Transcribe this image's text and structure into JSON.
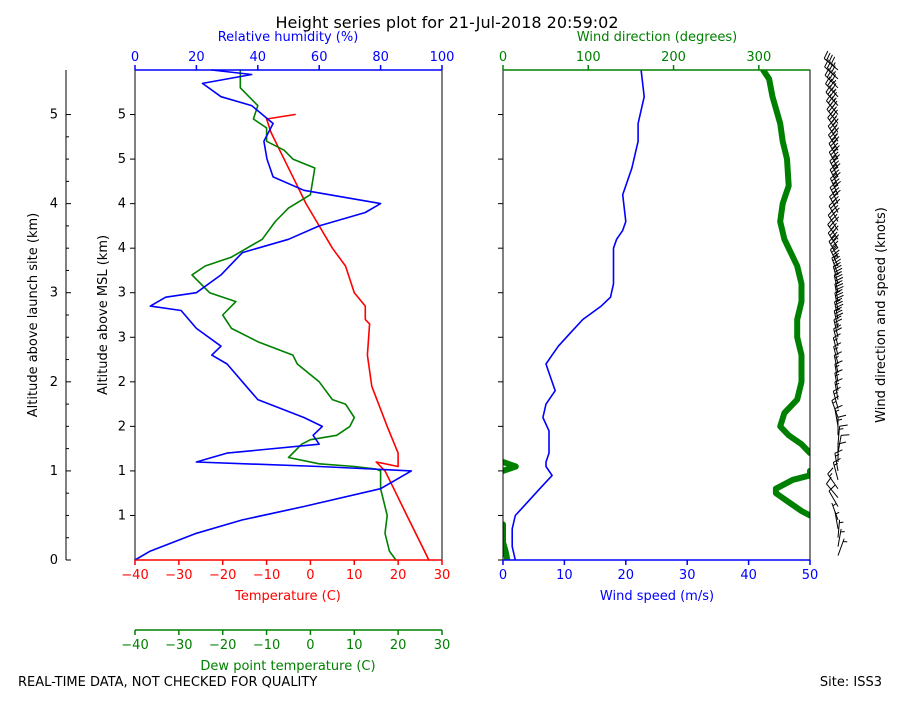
{
  "title": "Height series plot for 21-Jul-2018 20:59:02",
  "footer_left": "REAL-TIME DATA, NOT CHECKED FOR QUALITY",
  "footer_right": "Site: ISS3",
  "colors": {
    "temperature": "#ff0000",
    "dewpoint": "#008000",
    "humidity": "#0000ff",
    "wind_speed": "#0000ff",
    "wind_direction": "#008000",
    "barbs": "#000000"
  },
  "chart_data": [
    {
      "type": "line",
      "panel": "thermo",
      "outer_axis": {
        "label": "Altitude above launch site (km)",
        "ylim": [
          0,
          5
        ],
        "ticks": [
          0,
          1,
          2,
          3,
          4,
          5
        ]
      },
      "y_axis": {
        "label": "Altitude above MSL (km)",
        "ticks": [
          0.5,
          1,
          1.5,
          2,
          2.5,
          3,
          3.5,
          4,
          4.5,
          5
        ],
        "tick_labels": [
          "1",
          "1",
          "2",
          "2",
          "3",
          "3",
          "4",
          "4",
          "5",
          "5"
        ]
      },
      "x_bottom": {
        "label": "Temperature (C)",
        "xlim": [
          -40,
          30
        ],
        "ticks": [
          -40,
          -30,
          -20,
          -10,
          0,
          10,
          20,
          30
        ]
      },
      "x_bottom2": {
        "label": "Dew point temperature (C)",
        "xlim": [
          -40,
          30
        ],
        "ticks": [
          -40,
          -30,
          -20,
          -10,
          0,
          10,
          20,
          30
        ]
      },
      "x_top": {
        "label": "Relative humidity (%)",
        "xlim": [
          0,
          100
        ],
        "ticks": [
          0,
          20,
          40,
          60,
          80,
          100
        ]
      },
      "series": [
        {
          "key": "temperature",
          "axis": "bottom",
          "points": [
            [
              27,
              0
            ],
            [
              25.5,
              0.15
            ],
            [
              22,
              0.5
            ],
            [
              19,
              0.8
            ],
            [
              17,
              1.0
            ],
            [
              15,
              1.1
            ],
            [
              20,
              1.05
            ],
            [
              20,
              1.2
            ],
            [
              17.5,
              1.5
            ],
            [
              14,
              1.95
            ],
            [
              13,
              2.3
            ],
            [
              13.5,
              2.65
            ],
            [
              12.5,
              2.7
            ],
            [
              12.5,
              2.85
            ],
            [
              10,
              3.0
            ],
            [
              8,
              3.3
            ],
            [
              5,
              3.5
            ],
            [
              2,
              3.75
            ],
            [
              -1,
              4.0
            ],
            [
              -3,
              4.2
            ],
            [
              -7,
              4.6
            ],
            [
              -9,
              4.8
            ],
            [
              -10,
              4.95
            ],
            [
              -3.5,
              5.0
            ]
          ]
        },
        {
          "key": "dewpoint",
          "axis": "bottom2",
          "points": [
            [
              19.5,
              0
            ],
            [
              18,
              0.1
            ],
            [
              17,
              0.3
            ],
            [
              17.5,
              0.5
            ],
            [
              16.5,
              0.7
            ],
            [
              16,
              0.8
            ],
            [
              16,
              1.0
            ],
            [
              15,
              1.02
            ],
            [
              10,
              1.05
            ],
            [
              2,
              1.08
            ],
            [
              -5,
              1.15
            ],
            [
              -2,
              1.3
            ],
            [
              0,
              1.35
            ],
            [
              6,
              1.4
            ],
            [
              9,
              1.5
            ],
            [
              10,
              1.6
            ],
            [
              8,
              1.75
            ],
            [
              5,
              1.8
            ],
            [
              2,
              2.0
            ],
            [
              -3,
              2.2
            ],
            [
              -4,
              2.3
            ],
            [
              -12,
              2.45
            ],
            [
              -18,
              2.6
            ],
            [
              -20,
              2.75
            ],
            [
              -17,
              2.9
            ],
            [
              -23,
              3.0
            ],
            [
              -27,
              3.2
            ],
            [
              -24,
              3.3
            ],
            [
              -18,
              3.4
            ],
            [
              -11,
              3.6
            ],
            [
              -8,
              3.8
            ],
            [
              -5,
              3.95
            ],
            [
              0,
              4.1
            ],
            [
              1,
              4.4
            ],
            [
              -4,
              4.5
            ],
            [
              -6,
              4.6
            ],
            [
              -10,
              4.7
            ],
            [
              -10,
              4.85
            ],
            [
              -13,
              4.95
            ],
            [
              -12,
              5.1
            ],
            [
              -16,
              5.3
            ],
            [
              -16,
              5.5
            ]
          ]
        },
        {
          "key": "humidity",
          "axis": "top",
          "points": [
            [
              0,
              0
            ],
            [
              5,
              0.1
            ],
            [
              20,
              0.3
            ],
            [
              35,
              0.45
            ],
            [
              55,
              0.6
            ],
            [
              80,
              0.8
            ],
            [
              90,
              1.0
            ],
            [
              60,
              1.05
            ],
            [
              20,
              1.1
            ],
            [
              25,
              1.15
            ],
            [
              30,
              1.2
            ],
            [
              60,
              1.3
            ],
            [
              58,
              1.4
            ],
            [
              61,
              1.5
            ],
            [
              55,
              1.6
            ],
            [
              40,
              1.8
            ],
            [
              35,
              2.0
            ],
            [
              30,
              2.2
            ],
            [
              25,
              2.3
            ],
            [
              28,
              2.4
            ],
            [
              20,
              2.6
            ],
            [
              15,
              2.8
            ],
            [
              5,
              2.85
            ],
            [
              10,
              2.95
            ],
            [
              20,
              3.0
            ],
            [
              28,
              3.2
            ],
            [
              35,
              3.45
            ],
            [
              50,
              3.6
            ],
            [
              60,
              3.75
            ],
            [
              75,
              3.9
            ],
            [
              80,
              4.0
            ],
            [
              55,
              4.15
            ],
            [
              45,
              4.3
            ],
            [
              43,
              4.5
            ],
            [
              42,
              4.7
            ],
            [
              45,
              4.9
            ],
            [
              38,
              5.1
            ],
            [
              28,
              5.2
            ],
            [
              22,
              5.35
            ],
            [
              38,
              5.45
            ],
            [
              25,
              5.5
            ]
          ]
        }
      ]
    },
    {
      "type": "line",
      "panel": "wind",
      "x_bottom": {
        "label": "Wind speed (m/s)",
        "xlim": [
          0,
          50
        ],
        "ticks": [
          0,
          10,
          20,
          30,
          40,
          50
        ]
      },
      "x_top": {
        "label": "Wind direction (degrees)",
        "xlim": [
          0,
          360
        ],
        "ticks": [
          0,
          100,
          200,
          300
        ]
      },
      "y_ticks": [
        0,
        0.5,
        1,
        1.5,
        2,
        2.5,
        3,
        3.5,
        4,
        4.5,
        5
      ],
      "series": [
        {
          "key": "wind_speed",
          "axis": "bottom",
          "points": [
            [
              2,
              0
            ],
            [
              1.5,
              0.15
            ],
            [
              1.5,
              0.35
            ],
            [
              2,
              0.5
            ],
            [
              4,
              0.65
            ],
            [
              6,
              0.8
            ],
            [
              8,
              0.95
            ],
            [
              7,
              1.05
            ],
            [
              7,
              1.1
            ],
            [
              7.5,
              1.2
            ],
            [
              7.5,
              1.45
            ],
            [
              6.5,
              1.6
            ],
            [
              7,
              1.75
            ],
            [
              8.5,
              1.9
            ],
            [
              7.5,
              2.1
            ],
            [
              7,
              2.2
            ],
            [
              8,
              2.3
            ],
            [
              9,
              2.4
            ],
            [
              11,
              2.55
            ],
            [
              13,
              2.7
            ],
            [
              16,
              2.85
            ],
            [
              17.5,
              2.95
            ],
            [
              18,
              3.1
            ],
            [
              18,
              3.5
            ],
            [
              18.5,
              3.6
            ],
            [
              19.5,
              3.7
            ],
            [
              20,
              3.8
            ],
            [
              19.5,
              4.1
            ],
            [
              21,
              4.4
            ],
            [
              22,
              4.7
            ],
            [
              22,
              4.9
            ],
            [
              23,
              5.2
            ],
            [
              22.5,
              5.5
            ]
          ]
        },
        {
          "key": "wind_direction",
          "axis": "top",
          "points": [
            [
              5,
              0
            ],
            [
              3,
              0.1
            ],
            [
              0,
              0.2
            ],
            [
              0,
              0.35
            ],
            [
              0,
              0.4
            ],
            [
              360,
              0.5
            ],
            [
              350,
              0.55
            ],
            [
              335,
              0.65
            ],
            [
              320,
              0.75
            ],
            [
              320,
              0.8
            ],
            [
              340,
              0.9
            ],
            [
              360,
              0.95
            ],
            [
              360,
              1.0
            ],
            [
              0,
              1.0
            ],
            [
              15,
              1.05
            ],
            [
              0,
              1.1
            ],
            [
              360,
              1.2
            ],
            [
              350,
              1.3
            ],
            [
              335,
              1.4
            ],
            [
              325,
              1.5
            ],
            [
              330,
              1.65
            ],
            [
              345,
              1.8
            ],
            [
              350,
              2.0
            ],
            [
              350,
              2.3
            ],
            [
              345,
              2.5
            ],
            [
              345,
              2.7
            ],
            [
              350,
              2.9
            ],
            [
              350,
              3.1
            ],
            [
              345,
              3.3
            ],
            [
              330,
              3.6
            ],
            [
              325,
              3.8
            ],
            [
              328,
              4.0
            ],
            [
              335,
              4.2
            ],
            [
              333,
              4.5
            ],
            [
              328,
              4.7
            ],
            [
              325,
              4.9
            ],
            [
              316,
              5.2
            ],
            [
              312,
              5.4
            ],
            [
              305,
              5.5
            ]
          ]
        }
      ]
    },
    {
      "type": "barbs",
      "panel": "barbs",
      "label": "Wind direction and speed (knots)",
      "altitudes_km": [
        0.05,
        0.15,
        0.25,
        0.35,
        0.45,
        0.6,
        0.7,
        0.8,
        0.9,
        1.0,
        1.1,
        1.2,
        1.3,
        1.4,
        1.5,
        1.6,
        1.7,
        1.8,
        1.9,
        2.0,
        2.1,
        2.2,
        2.3,
        2.4,
        2.5,
        2.6,
        2.7,
        2.8,
        2.9,
        3.0,
        3.1,
        3.2,
        3.3,
        3.4,
        3.5,
        3.6,
        3.7,
        3.8,
        3.9,
        4.0,
        4.1,
        4.2,
        4.3,
        4.4,
        4.5,
        4.6,
        4.7,
        4.8,
        4.9,
        5.0,
        5.1,
        5.2,
        5.3,
        5.4,
        5.5
      ],
      "direction_deg": [
        20,
        10,
        5,
        350,
        340,
        330,
        320,
        325,
        345,
        350,
        0,
        10,
        5,
        0,
        350,
        340,
        345,
        350,
        350,
        350,
        348,
        346,
        345,
        346,
        347,
        348,
        349,
        350,
        350,
        348,
        345,
        340,
        335,
        330,
        327,
        325,
        327,
        330,
        332,
        334,
        335,
        334,
        333,
        331,
        330,
        328,
        327,
        325,
        322,
        320,
        318,
        316,
        314,
        312,
        310
      ],
      "speed_kt": [
        4,
        3,
        3,
        4,
        6,
        10,
        12,
        14,
        15,
        14,
        12,
        12,
        14,
        14,
        14,
        14,
        15,
        17,
        16,
        14,
        15,
        16,
        17,
        20,
        24,
        30,
        34,
        35,
        35,
        35,
        35,
        36,
        37,
        37,
        38,
        38,
        38,
        38,
        38,
        38,
        40,
        41,
        42,
        42,
        42,
        42,
        43,
        43,
        43,
        44,
        44,
        44,
        44,
        44,
        44
      ]
    }
  ]
}
